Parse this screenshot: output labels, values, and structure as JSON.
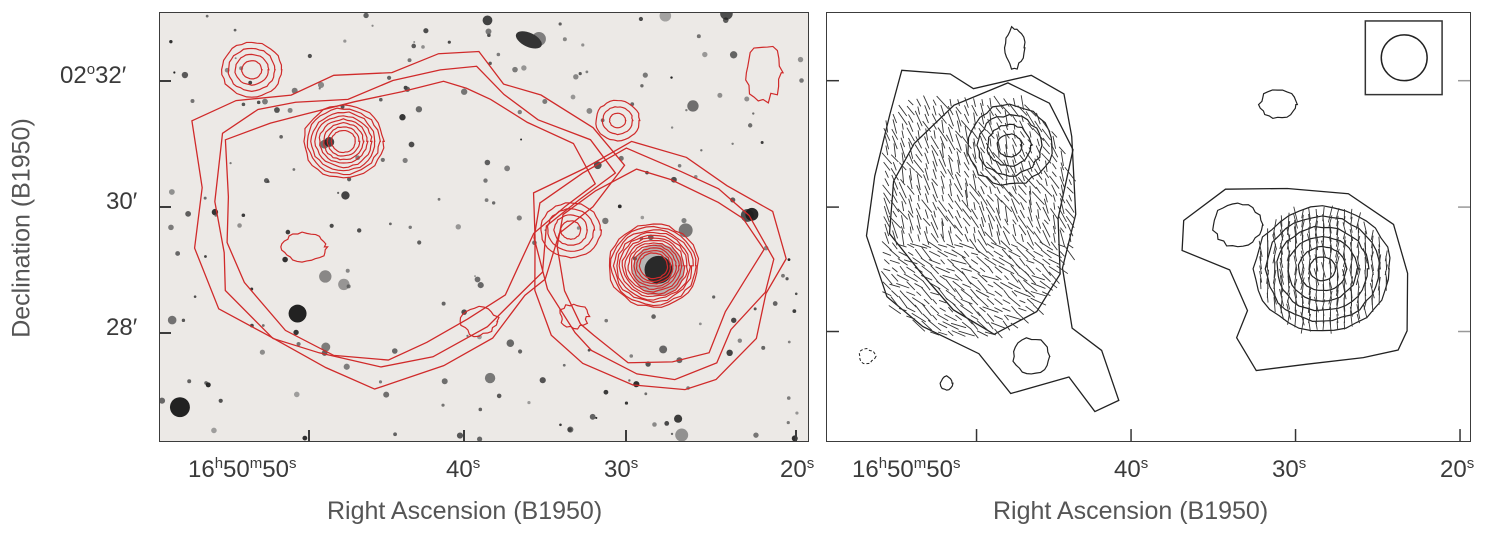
{
  "left_panel": {
    "y_axis_title": "Declination (B1950)",
    "x_axis_title": "Right Ascension (B1950)",
    "y_ticks": {
      "t1": {
        "deg": "02",
        "degsym": "o",
        "min": "32",
        "minsym": "′"
      },
      "t2": {
        "min": "30",
        "minsym": "′"
      },
      "t3": {
        "min": "28",
        "minsym": "′"
      }
    },
    "x_ticks": {
      "t1": {
        "h": "16",
        "hs": "h",
        "m": "50",
        "ms": "m",
        "s": "50",
        "ss": "s"
      },
      "t2": {
        "s": "40",
        "ss": "s"
      },
      "t3": {
        "s": "30",
        "ss": "s"
      },
      "t4": {
        "s": "20",
        "ss": "s"
      }
    },
    "contour_color": "#d02a2a"
  },
  "right_panel": {
    "x_axis_title": "Right Ascension (B1950)",
    "x_ticks": {
      "t1": {
        "h": "16",
        "hs": "h",
        "m": "50",
        "ms": "m",
        "s": "50",
        "ss": "s"
      },
      "t2": {
        "s": "40",
        "ss": "s"
      },
      "t3": {
        "s": "30",
        "ss": "s"
      },
      "t4": {
        "s": "20",
        "ss": "s"
      }
    },
    "contour_color": "#222222"
  }
}
